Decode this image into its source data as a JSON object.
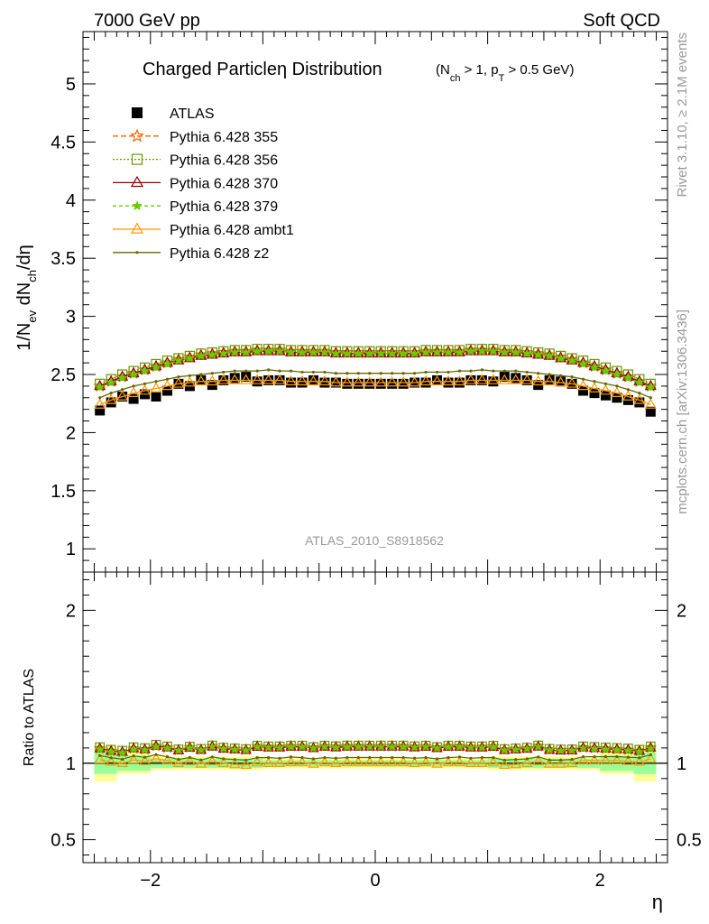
{
  "header": {
    "left": "7000 GeV pp",
    "right": "Soft QCD"
  },
  "side_labels": {
    "rivet": "Rivet 3.1.10, ≥ 2.1M events",
    "mcplots": "mcplots.cern.ch [arXiv:1306.3436]"
  },
  "chart_data": [
    {
      "type": "line",
      "title_main": "Charged Particleη Distribution",
      "title_cuts": "(N",
      "title_cuts_sub1": "ch",
      "title_cuts_mid": " > 1, p",
      "title_cuts_sub2": "T",
      "title_cuts_end": " > 0.5 GeV)",
      "ylabel": "1/N_ev dN_ch/dη",
      "analysis": "ATLAS_2010_S8918562",
      "xlim": [
        -2.6,
        2.6
      ],
      "ylim": [
        0.8,
        5.45
      ],
      "yticks": [
        1,
        1.5,
        2,
        2.5,
        3,
        3.5,
        4,
        4.5,
        5
      ],
      "ytick_labels": [
        "1",
        "1.5",
        "2",
        "2.5",
        "3",
        "3.5",
        "4",
        "4.5",
        "5"
      ],
      "x": [
        -2.45,
        -2.35,
        -2.25,
        -2.15,
        -2.05,
        -1.95,
        -1.85,
        -1.75,
        -1.65,
        -1.55,
        -1.45,
        -1.35,
        -1.25,
        -1.15,
        -1.05,
        -0.95,
        -0.85,
        -0.75,
        -0.65,
        -0.55,
        -0.45,
        -0.35,
        -0.25,
        -0.15,
        -0.05,
        0.05,
        0.15,
        0.25,
        0.35,
        0.45,
        0.55,
        0.65,
        0.75,
        0.85,
        0.95,
        1.05,
        1.15,
        1.25,
        1.35,
        1.45,
        1.55,
        1.65,
        1.75,
        1.85,
        1.95,
        2.05,
        2.15,
        2.25,
        2.35,
        2.45
      ],
      "series": [
        {
          "name": "ATLAS",
          "color": "#000000",
          "marker": "square-filled",
          "values": [
            2.19,
            2.26,
            2.31,
            2.29,
            2.33,
            2.31,
            2.36,
            2.42,
            2.4,
            2.45,
            2.41,
            2.45,
            2.47,
            2.48,
            2.44,
            2.45,
            2.45,
            2.43,
            2.43,
            2.45,
            2.43,
            2.43,
            2.42,
            2.42,
            2.42,
            2.42,
            2.42,
            2.42,
            2.43,
            2.43,
            2.45,
            2.43,
            2.43,
            2.45,
            2.45,
            2.44,
            2.48,
            2.47,
            2.45,
            2.41,
            2.45,
            2.44,
            2.42,
            2.36,
            2.34,
            2.32,
            2.3,
            2.28,
            2.26,
            2.18
          ]
        },
        {
          "name": "Pythia 6.428 355",
          "color": "#ff5f00",
          "marker": "star-open",
          "dash": "6,3",
          "values": [
            2.4,
            2.44,
            2.48,
            2.51,
            2.54,
            2.57,
            2.6,
            2.63,
            2.65,
            2.67,
            2.68,
            2.69,
            2.7,
            2.7,
            2.71,
            2.71,
            2.71,
            2.7,
            2.7,
            2.7,
            2.7,
            2.69,
            2.69,
            2.69,
            2.69,
            2.69,
            2.69,
            2.69,
            2.69,
            2.7,
            2.7,
            2.7,
            2.7,
            2.71,
            2.71,
            2.71,
            2.7,
            2.7,
            2.69,
            2.68,
            2.67,
            2.65,
            2.63,
            2.6,
            2.57,
            2.54,
            2.51,
            2.48,
            2.44,
            2.4
          ]
        },
        {
          "name": "Pythia 6.428 356",
          "color": "#669900",
          "marker": "square-open",
          "dash": "2,2",
          "values": [
            2.42,
            2.46,
            2.5,
            2.53,
            2.56,
            2.59,
            2.62,
            2.64,
            2.66,
            2.68,
            2.69,
            2.7,
            2.71,
            2.71,
            2.72,
            2.72,
            2.72,
            2.71,
            2.71,
            2.71,
            2.71,
            2.7,
            2.7,
            2.7,
            2.7,
            2.7,
            2.7,
            2.7,
            2.7,
            2.71,
            2.71,
            2.71,
            2.71,
            2.72,
            2.72,
            2.72,
            2.71,
            2.71,
            2.7,
            2.69,
            2.68,
            2.66,
            2.64,
            2.62,
            2.59,
            2.56,
            2.53,
            2.5,
            2.46,
            2.42
          ]
        },
        {
          "name": "Pythia 6.428 370",
          "color": "#990000",
          "marker": "triangle-open",
          "dash": "",
          "values": [
            2.4,
            2.44,
            2.48,
            2.51,
            2.54,
            2.57,
            2.6,
            2.62,
            2.64,
            2.66,
            2.67,
            2.68,
            2.69,
            2.69,
            2.7,
            2.7,
            2.7,
            2.69,
            2.69,
            2.69,
            2.69,
            2.68,
            2.68,
            2.68,
            2.68,
            2.68,
            2.68,
            2.68,
            2.68,
            2.69,
            2.69,
            2.69,
            2.69,
            2.7,
            2.7,
            2.7,
            2.69,
            2.69,
            2.68,
            2.67,
            2.66,
            2.64,
            2.62,
            2.6,
            2.57,
            2.54,
            2.51,
            2.48,
            2.44,
            2.4
          ]
        },
        {
          "name": "Pythia 6.428 379",
          "color": "#66cc00",
          "marker": "star-filled",
          "dash": "4,3",
          "values": [
            2.39,
            2.43,
            2.47,
            2.5,
            2.53,
            2.56,
            2.59,
            2.62,
            2.64,
            2.66,
            2.67,
            2.68,
            2.69,
            2.69,
            2.7,
            2.7,
            2.7,
            2.69,
            2.69,
            2.69,
            2.69,
            2.68,
            2.68,
            2.68,
            2.68,
            2.68,
            2.68,
            2.68,
            2.68,
            2.69,
            2.69,
            2.69,
            2.69,
            2.7,
            2.7,
            2.7,
            2.69,
            2.69,
            2.68,
            2.67,
            2.66,
            2.64,
            2.62,
            2.59,
            2.56,
            2.53,
            2.5,
            2.47,
            2.43,
            2.39
          ]
        },
        {
          "name": "Pythia 6.428 ambt1",
          "color": "#ff9900",
          "marker": "triangle-open",
          "dash": "",
          "values": [
            2.24,
            2.28,
            2.31,
            2.34,
            2.36,
            2.38,
            2.4,
            2.42,
            2.43,
            2.44,
            2.44,
            2.45,
            2.45,
            2.45,
            2.45,
            2.45,
            2.45,
            2.44,
            2.44,
            2.44,
            2.44,
            2.43,
            2.43,
            2.43,
            2.43,
            2.43,
            2.43,
            2.43,
            2.43,
            2.44,
            2.44,
            2.44,
            2.44,
            2.45,
            2.45,
            2.45,
            2.45,
            2.45,
            2.45,
            2.44,
            2.44,
            2.43,
            2.42,
            2.4,
            2.38,
            2.36,
            2.34,
            2.31,
            2.28,
            2.24
          ]
        },
        {
          "name": "Pythia 6.428 z2",
          "color": "#666600",
          "marker": "dot",
          "dash": "",
          "values": [
            2.3,
            2.34,
            2.37,
            2.4,
            2.42,
            2.44,
            2.46,
            2.48,
            2.49,
            2.5,
            2.51,
            2.52,
            2.53,
            2.53,
            2.53,
            2.54,
            2.53,
            2.53,
            2.52,
            2.52,
            2.52,
            2.51,
            2.51,
            2.51,
            2.51,
            2.51,
            2.51,
            2.51,
            2.51,
            2.52,
            2.52,
            2.52,
            2.53,
            2.53,
            2.54,
            2.53,
            2.53,
            2.53,
            2.52,
            2.51,
            2.5,
            2.49,
            2.48,
            2.46,
            2.44,
            2.42,
            2.4,
            2.37,
            2.34,
            2.3
          ]
        }
      ]
    },
    {
      "type": "line",
      "ylabel": "Ratio to ATLAS",
      "xlabel": "η",
      "xlim": [
        -2.6,
        2.6
      ],
      "ylim": [
        0.35,
        2.25
      ],
      "yticks": [
        0.5,
        1,
        2
      ],
      "ytick_labels": [
        "0.5",
        "1",
        "2"
      ],
      "xticks": [
        -2,
        0,
        2
      ],
      "xtick_labels": [
        "−2",
        "0",
        "2"
      ],
      "reference": 1,
      "bands": [
        {
          "name": "stat",
          "color": "#99ff99",
          "x_edges": [
            -2.5,
            -2.3,
            -2.0,
            -1.0,
            1.0,
            2.0,
            2.3,
            2.5
          ],
          "half_widths": [
            0.07,
            0.05,
            0.03,
            0.02,
            0.03,
            0.05,
            0.07
          ]
        },
        {
          "name": "total",
          "color": "#ffff99",
          "x_edges": [
            -2.5,
            -2.3,
            -2.0,
            -1.0,
            1.0,
            2.0,
            2.3,
            2.5
          ],
          "half_widths": [
            0.12,
            0.07,
            0.045,
            0.035,
            0.045,
            0.07,
            0.12
          ]
        }
      ]
    }
  ]
}
